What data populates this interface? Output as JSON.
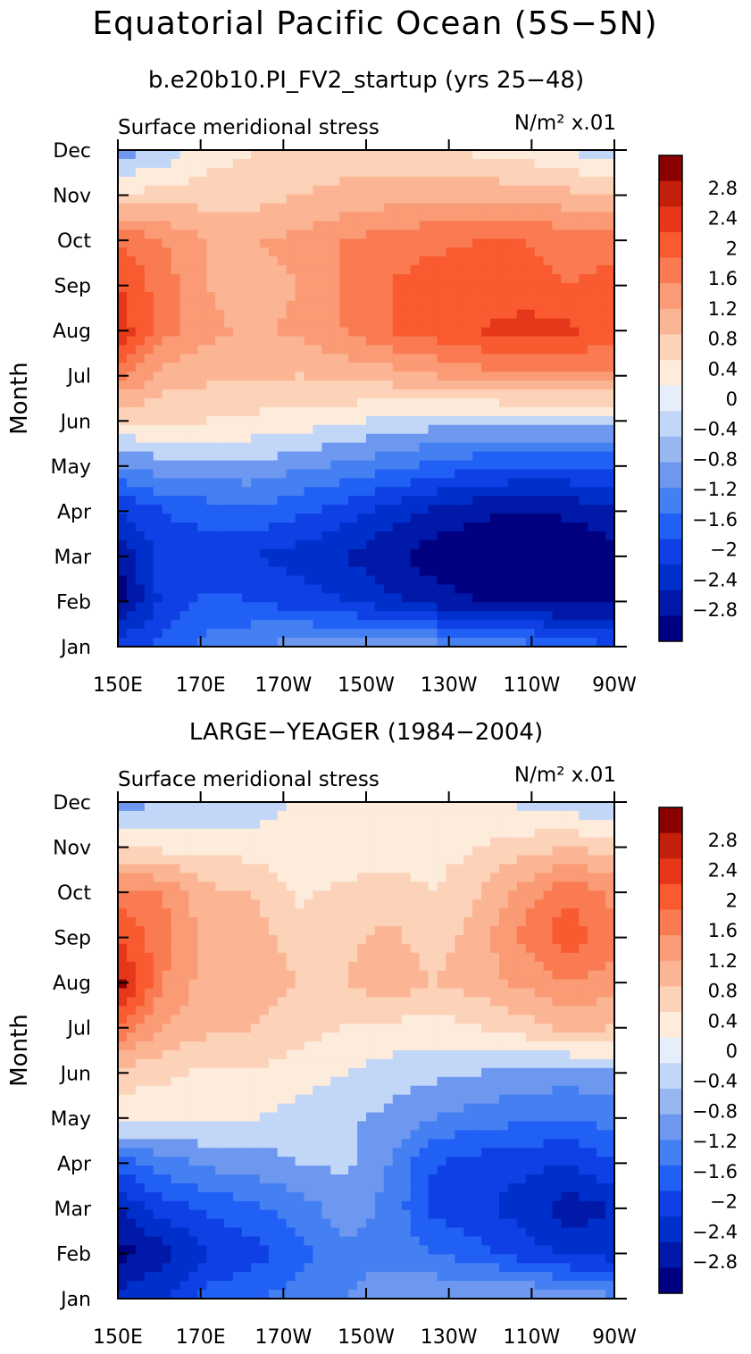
{
  "figure": {
    "title": "Equatorial Pacific Ocean (5S−5N)"
  },
  "colorbar": {
    "colors": [
      "#000080",
      "#0019a8",
      "#0030cc",
      "#0f40e6",
      "#2160f5",
      "#4580f2",
      "#6e98f0",
      "#98b7f0",
      "#c2d6f7",
      "#e6eefb",
      "#fdebdc",
      "#fcd2b8",
      "#fbb594",
      "#fa9b75",
      "#fa7b52",
      "#f95a30",
      "#e6371a",
      "#c2200b",
      "#8b0000"
    ],
    "labels": [
      "−2.8",
      "−2.4",
      "−2",
      "−1.6",
      "−1.2",
      "−0.8",
      "−0.4",
      "0",
      "0.4",
      "0.8",
      "1.2",
      "1.6",
      "2",
      "2.4",
      "2.8"
    ]
  },
  "chart_data": [
    {
      "type": "heatmap",
      "title": "b.e20b10.PI_FV2_startup (yrs 25−48)",
      "variable": "Surface meridional stress",
      "units": "N/m² x.01",
      "xlabel": "",
      "ylabel": "Month",
      "x_ticks": [
        "150E",
        "170E",
        "170W",
        "150W",
        "130W",
        "110W",
        "90W"
      ],
      "y_ticks": [
        "Jan",
        "Feb",
        "Mar",
        "Apr",
        "May",
        "Jun",
        "Jul",
        "Aug",
        "Sep",
        "Oct",
        "Nov",
        "Dec"
      ],
      "values": [
        [
          -1.8,
          -1.5,
          -1.0,
          -0.8,
          -0.6,
          -0.5,
          -0.5,
          -0.6,
          -0.8,
          -1.0,
          -1.3,
          -1.6
        ],
        [
          -3.0,
          -1.9,
          -1.5,
          -1.6,
          -1.8,
          -2.0,
          -2.3,
          -2.6,
          -2.8,
          -2.9,
          -3.0,
          -2.8
        ],
        [
          -2.8,
          -1.8,
          -1.9,
          -2.0,
          -2.2,
          -2.4,
          -2.7,
          -3.0,
          -3.2,
          -3.3,
          -3.2,
          -3.0
        ],
        [
          -2.0,
          -1.6,
          -1.4,
          -1.3,
          -1.5,
          -1.8,
          -2.2,
          -2.5,
          -2.7,
          -2.8,
          -2.7,
          -2.5
        ],
        [
          -0.8,
          -0.6,
          -0.5,
          -0.5,
          -0.7,
          -0.9,
          -1.1,
          -1.3,
          -1.5,
          -1.6,
          -1.6,
          -1.5
        ],
        [
          0.4,
          0.5,
          0.4,
          0.3,
          0.2,
          0.1,
          -0.1,
          -0.2,
          -0.3,
          -0.3,
          -0.3,
          -0.3
        ],
        [
          1.8,
          1.0,
          0.9,
          0.9,
          0.8,
          0.9,
          1.0,
          1.2,
          1.4,
          1.5,
          1.5,
          1.5
        ],
        [
          2.7,
          1.8,
          1.3,
          1.1,
          1.3,
          1.6,
          2.0,
          2.2,
          2.4,
          2.6,
          2.5,
          2.2
        ],
        [
          2.4,
          1.8,
          1.2,
          1.0,
          1.2,
          1.6,
          2.0,
          2.2,
          2.2,
          2.1,
          2.0,
          2.1
        ],
        [
          2.0,
          1.6,
          1.2,
          1.2,
          1.3,
          1.6,
          1.8,
          1.9,
          2.0,
          2.0,
          1.9,
          1.9
        ],
        [
          0.4,
          0.6,
          0.6,
          0.6,
          0.8,
          0.9,
          1.0,
          1.1,
          1.1,
          1.0,
          0.9,
          0.7
        ],
        [
          -0.6,
          -0.3,
          0.2,
          0.4,
          0.6,
          0.6,
          0.6,
          0.5,
          0.3,
          0.2,
          0.0,
          -0.3
        ]
      ],
      "zlim": [
        -3.2,
        3.2
      ]
    },
    {
      "type": "heatmap",
      "title": "LARGE−YEAGER (1984−2004)",
      "variable": "Surface meridional stress",
      "units": "N/m² x.01",
      "xlabel": "",
      "ylabel": "Month",
      "x_ticks": [
        "150E",
        "170E",
        "170W",
        "150W",
        "130W",
        "110W",
        "90W"
      ],
      "y_ticks": [
        "Jan",
        "Feb",
        "Mar",
        "Apr",
        "May",
        "Jun",
        "Jul",
        "Aug",
        "Sep",
        "Oct",
        "Nov",
        "Dec"
      ],
      "values": [
        [
          -2.2,
          -2.0,
          -1.4,
          -1.2,
          -1.0,
          -0.8,
          -0.6,
          -0.4,
          -0.3,
          -0.3,
          -0.5,
          -0.7
        ],
        [
          -3.0,
          -2.6,
          -2.0,
          -1.8,
          -1.4,
          -0.9,
          -0.9,
          -1.2,
          -1.5,
          -1.8,
          -2.1,
          -2.2
        ],
        [
          -2.4,
          -1.8,
          -1.5,
          -1.3,
          -1.0,
          -0.6,
          -0.9,
          -1.7,
          -1.9,
          -2.2,
          -2.6,
          -2.4
        ],
        [
          -1.4,
          -1.0,
          -0.7,
          -0.6,
          -0.4,
          -0.3,
          -0.8,
          -1.6,
          -1.8,
          -1.9,
          -2.0,
          -1.6
        ],
        [
          0.2,
          0.1,
          0.1,
          0.0,
          -0.2,
          -0.3,
          -0.5,
          -0.8,
          -1.0,
          -1.1,
          -1.2,
          -1.0
        ],
        [
          0.6,
          0.5,
          0.3,
          0.4,
          0.2,
          0.0,
          -0.2,
          -0.3,
          -0.4,
          -0.5,
          -0.6,
          -0.5
        ],
        [
          2.0,
          1.2,
          0.9,
          0.8,
          0.6,
          0.4,
          0.3,
          0.2,
          0.4,
          0.6,
          0.9,
          0.8
        ],
        [
          3.0,
          1.6,
          1.0,
          1.0,
          0.8,
          0.8,
          1.1,
          0.8,
          1.0,
          1.3,
          1.6,
          1.4
        ],
        [
          2.4,
          1.8,
          1.0,
          1.0,
          0.6,
          0.7,
          0.9,
          0.6,
          1.0,
          1.7,
          2.3,
          1.7
        ],
        [
          1.8,
          1.6,
          0.9,
          0.8,
          0.3,
          0.5,
          0.6,
          0.4,
          0.8,
          1.4,
          1.9,
          1.5
        ],
        [
          0.4,
          0.3,
          0.3,
          0.2,
          0.0,
          0.1,
          0.2,
          0.2,
          0.4,
          0.6,
          0.8,
          0.6
        ],
        [
          -0.6,
          -0.4,
          -0.3,
          -0.2,
          0.1,
          0.2,
          0.3,
          0.4,
          0.2,
          -0.1,
          -0.3,
          -0.5
        ]
      ],
      "zlim": [
        -3.2,
        3.2
      ]
    }
  ]
}
